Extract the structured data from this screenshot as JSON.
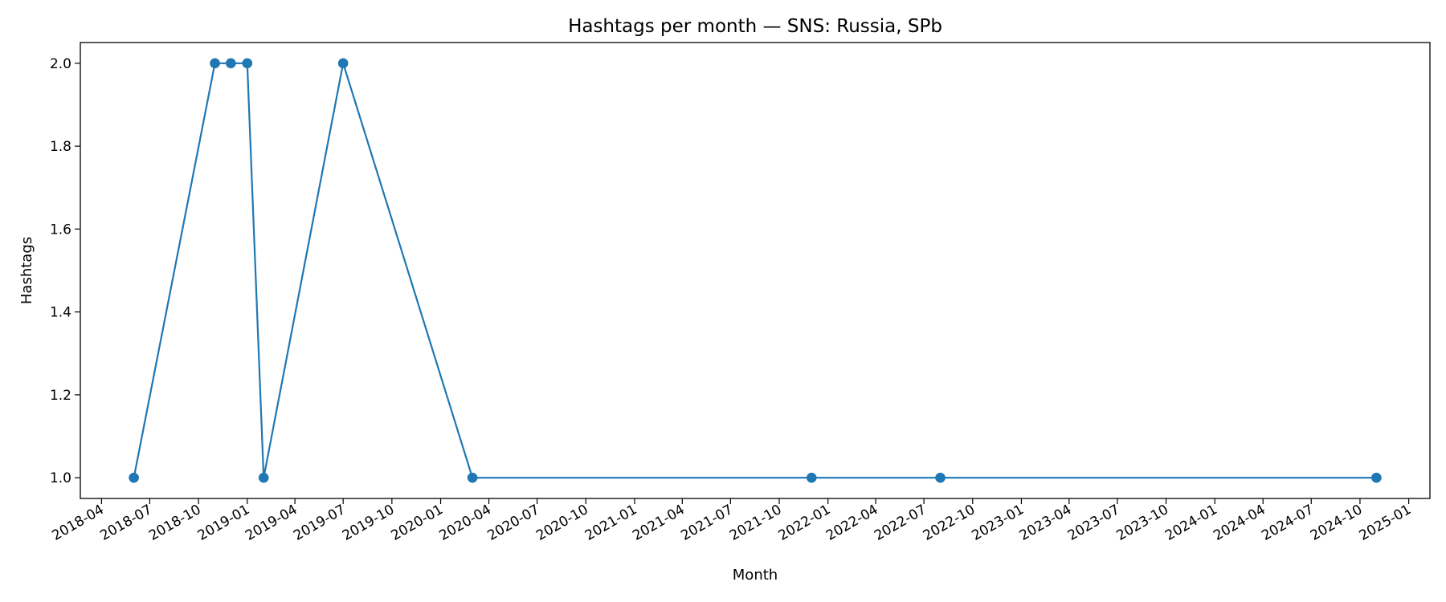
{
  "chart_data": {
    "type": "line",
    "title": "Hashtags per month — SNS: Russia, SPb",
    "xlabel": "Month",
    "ylabel": "Hashtags",
    "x_axis_type": "date",
    "xlim": [
      "2018-02-20",
      "2025-02-10"
    ],
    "ylim": [
      0.95,
      2.05
    ],
    "x_ticks": [
      "2018-04",
      "2018-07",
      "2018-10",
      "2019-01",
      "2019-04",
      "2019-07",
      "2019-10",
      "2020-01",
      "2020-04",
      "2020-07",
      "2020-10",
      "2021-01",
      "2021-04",
      "2021-07",
      "2021-10",
      "2022-01",
      "2022-04",
      "2022-07",
      "2022-10",
      "2023-01",
      "2023-04",
      "2023-07",
      "2023-10",
      "2024-01",
      "2024-04",
      "2024-07",
      "2024-10",
      "2025-01"
    ],
    "y_ticks": [
      1.0,
      1.2,
      1.4,
      1.6,
      1.8,
      2.0
    ],
    "y_tick_labels": [
      "1.0",
      "1.2",
      "1.4",
      "1.6",
      "1.8",
      "2.0"
    ],
    "grid": false,
    "legend": "none",
    "series": [
      {
        "color": "#1f77b4",
        "marker": "circle",
        "points": [
          {
            "x": "2018-06",
            "y": 1
          },
          {
            "x": "2018-11",
            "y": 2
          },
          {
            "x": "2018-12",
            "y": 2
          },
          {
            "x": "2019-01",
            "y": 2
          },
          {
            "x": "2019-02",
            "y": 1
          },
          {
            "x": "2019-07",
            "y": 2
          },
          {
            "x": "2020-03",
            "y": 1
          },
          {
            "x": "2021-12",
            "y": 1
          },
          {
            "x": "2022-08",
            "y": 1
          },
          {
            "x": "2024-11",
            "y": 1
          }
        ]
      }
    ]
  }
}
